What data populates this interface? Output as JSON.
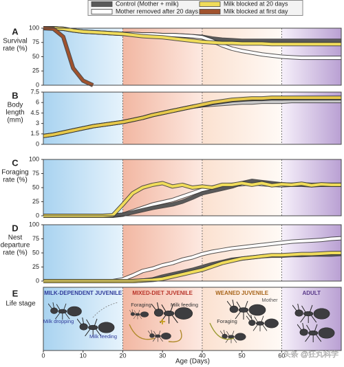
{
  "x_axis": {
    "label": "Age (Days)",
    "xlim": [
      0,
      75
    ],
    "xticks": [
      0,
      10,
      20,
      30,
      40,
      50,
      60
    ],
    "phase_boundaries": [
      20,
      40,
      60
    ]
  },
  "chart_data": [
    {
      "type": "line",
      "letter": "A",
      "ylabel": [
        "Survival",
        "rate (%)"
      ],
      "ylim": [
        0,
        100
      ],
      "yticks": [
        0,
        25,
        50,
        75,
        100
      ],
      "x": [
        0,
        2.5,
        5,
        7.5,
        10,
        12.5,
        15,
        17.5,
        20,
        22.5,
        25,
        27.5,
        30,
        32.5,
        35,
        37.5,
        40,
        42.5,
        45,
        47.5,
        50,
        52.5,
        55,
        57.5,
        60,
        62.5,
        65,
        67.5,
        70,
        72.5,
        75
      ],
      "series": [
        {
          "name": "Control (Mother + milk)",
          "color": "#5a5a5a",
          "values": [
            100,
            100,
            99,
            96,
            94,
            93,
            92,
            91,
            90,
            90,
            89,
            89,
            88,
            88,
            87,
            86,
            85,
            82,
            80,
            79,
            78,
            78,
            78,
            78,
            78,
            78,
            78,
            78,
            78,
            78,
            78
          ]
        },
        {
          "name": "Mother removed after 20 days",
          "color": "#ffffff",
          "values": [
            100,
            100,
            99,
            96,
            94,
            93,
            92,
            91,
            90,
            90,
            89,
            89,
            88,
            88,
            87,
            86,
            84,
            78,
            70,
            64,
            60,
            57,
            54,
            52,
            50,
            49,
            48,
            48,
            48,
            48,
            48
          ]
        },
        {
          "name": "Milk blocked at 20 days",
          "color": "#f0dc5a",
          "values": [
            100,
            100,
            99,
            96,
            94,
            93,
            92,
            91,
            90,
            88,
            86,
            85,
            84,
            82,
            80,
            78,
            76,
            75,
            74,
            74,
            73,
            73,
            73,
            72,
            72,
            72,
            72,
            72,
            72,
            72,
            72
          ]
        },
        {
          "name": "Milk blocked at first day",
          "color": "#a0522d",
          "values": [
            100,
            99,
            85,
            30,
            8,
            0,
            null,
            null,
            null,
            null,
            null,
            null,
            null,
            null,
            null,
            null,
            null,
            null,
            null,
            null,
            null,
            null,
            null,
            null,
            null,
            null,
            null,
            null,
            null,
            null,
            null
          ]
        }
      ]
    },
    {
      "type": "line",
      "letter": "B",
      "ylabel": [
        "Body",
        "length",
        "(mm)"
      ],
      "ylim": [
        0,
        7.5
      ],
      "yticks": [
        0,
        1.5,
        3,
        4.5,
        6,
        7.5
      ],
      "x": [
        0,
        2.5,
        5,
        7.5,
        10,
        12.5,
        15,
        17.5,
        20,
        22.5,
        25,
        27.5,
        30,
        32.5,
        35,
        37.5,
        40,
        42.5,
        45,
        47.5,
        50,
        52.5,
        55,
        57.5,
        60,
        62.5,
        65,
        67.5,
        70,
        72.5,
        75
      ],
      "series": [
        {
          "name": "Mother removed after 20 days",
          "color": "#c8c8c8",
          "values": [
            1.2,
            1.4,
            1.7,
            2.0,
            2.3,
            2.6,
            2.8,
            3.0,
            3.2,
            3.5,
            3.8,
            4.2,
            4.5,
            4.8,
            5.1,
            5.4,
            5.6,
            5.7,
            5.8,
            5.9,
            6.0,
            6.0,
            6.1,
            6.1,
            6.1,
            6.2,
            6.2,
            6.2,
            6.2,
            6.2,
            6.2
          ]
        },
        {
          "name": "Control (Mother + milk)",
          "color": "#333333",
          "values": [
            1.2,
            1.4,
            1.7,
            2.0,
            2.3,
            2.6,
            2.8,
            3.0,
            3.2,
            3.5,
            3.8,
            4.2,
            4.5,
            4.8,
            5.1,
            5.4,
            5.6,
            5.9,
            6.1,
            6.3,
            6.4,
            6.5,
            6.5,
            6.6,
            6.6,
            6.6,
            6.6,
            6.6,
            6.6,
            6.6,
            6.6
          ]
        },
        {
          "name": "Milk blocked at 20 days",
          "color": "#e6c84a",
          "values": [
            1.2,
            1.4,
            1.7,
            2.0,
            2.3,
            2.6,
            2.8,
            3.0,
            3.2,
            3.5,
            3.8,
            4.2,
            4.5,
            4.8,
            5.1,
            5.4,
            5.7,
            6.0,
            6.2,
            6.4,
            6.5,
            6.6,
            6.6,
            6.7,
            6.7,
            6.7,
            6.7,
            6.7,
            6.7,
            6.7,
            6.7
          ]
        }
      ]
    },
    {
      "type": "line",
      "letter": "C",
      "ylabel": [
        "Foraging",
        "rate (%)"
      ],
      "ylim": [
        0,
        100
      ],
      "yticks": [
        0,
        25,
        50,
        75,
        100
      ],
      "x": [
        0,
        2.5,
        5,
        7.5,
        10,
        12.5,
        15,
        17.5,
        20,
        22.5,
        25,
        27.5,
        30,
        32.5,
        35,
        37.5,
        40,
        42.5,
        45,
        47.5,
        50,
        52.5,
        55,
        57.5,
        60,
        62.5,
        65,
        67.5,
        70,
        72.5,
        75
      ],
      "series": [
        {
          "name": "Mother removed after 20 days",
          "color": "#ffffff",
          "values": [
            0,
            0,
            0,
            0,
            0,
            0,
            0,
            0,
            2,
            8,
            14,
            20,
            24,
            28,
            34,
            40,
            46,
            50,
            52,
            55,
            56,
            58,
            56,
            55,
            54,
            55,
            56,
            55,
            55,
            55,
            55
          ]
        },
        {
          "name": "Control (Mother + milk)",
          "color": "#5a5a5a",
          "values": [
            0,
            0,
            0,
            0,
            0,
            0,
            0,
            0.5,
            2,
            6,
            10,
            14,
            17,
            20,
            25,
            32,
            40,
            44,
            48,
            52,
            58,
            62,
            60,
            58,
            56,
            55,
            55,
            54,
            55,
            55,
            55
          ]
        },
        {
          "name": "Milk blocked at 20 days",
          "color": "#f0dc5a",
          "values": [
            0,
            0,
            0,
            0,
            0,
            0,
            0,
            1,
            20,
            40,
            50,
            55,
            58,
            52,
            55,
            50,
            52,
            50,
            55,
            55,
            58,
            55,
            58,
            54,
            56,
            55,
            57,
            54,
            56,
            55,
            55
          ]
        }
      ]
    },
    {
      "type": "line",
      "letter": "D",
      "ylabel": [
        "Nest",
        "departure",
        "rate (%)"
      ],
      "ylim": [
        0,
        100
      ],
      "yticks": [
        0,
        25,
        50,
        75,
        100
      ],
      "x": [
        0,
        2.5,
        5,
        7.5,
        10,
        12.5,
        15,
        17.5,
        20,
        22.5,
        25,
        27.5,
        30,
        32.5,
        35,
        37.5,
        40,
        42.5,
        45,
        47.5,
        50,
        52.5,
        55,
        57.5,
        60,
        62.5,
        65,
        67.5,
        70,
        72.5,
        75
      ],
      "series": [
        {
          "name": "Mother removed after 20 days",
          "color": "#ffffff",
          "values": [
            0,
            0,
            0,
            0,
            0,
            0,
            0,
            0,
            3,
            10,
            18,
            22,
            28,
            32,
            38,
            42,
            48,
            52,
            55,
            58,
            60,
            62,
            64,
            66,
            68,
            70,
            71,
            72,
            73,
            75,
            76
          ]
        },
        {
          "name": "Control (Mother + milk)",
          "color": "#5a5a5a",
          "values": [
            0,
            0,
            0,
            0,
            0,
            0,
            0,
            0,
            0,
            0,
            1,
            3,
            8,
            12,
            16,
            20,
            25,
            30,
            34,
            38,
            40,
            42,
            44,
            45,
            45,
            46,
            46,
            47,
            47,
            47,
            48
          ]
        },
        {
          "name": "Milk blocked at 20 days",
          "color": "#f0dc5a",
          "values": [
            0,
            0,
            0,
            0,
            0,
            0,
            0,
            0,
            0,
            0,
            1,
            2,
            4,
            8,
            12,
            16,
            20,
            26,
            32,
            36,
            40,
            42,
            44,
            46,
            46,
            47,
            48,
            48,
            49,
            50,
            50
          ]
        }
      ]
    }
  ],
  "stage_panel": {
    "letter": "E",
    "ylabel": "Life stage",
    "stages": [
      {
        "label": "MILK-DEPENDENT JUVENILE",
        "color": "#2e3a9a"
      },
      {
        "label": "MIXED-DIET JUVENILE",
        "color": "#b8342a"
      },
      {
        "label": "WEANED JUVENILE",
        "color": "#a8651a"
      },
      {
        "label": "ADULT",
        "color": "#5a3a8a"
      }
    ],
    "notes": [
      "Milk dropping",
      "Milk feeding",
      "Foraging",
      "Milk feeding",
      "Mother",
      "Foraging"
    ]
  },
  "watermark": "头条 @狂丸科学"
}
